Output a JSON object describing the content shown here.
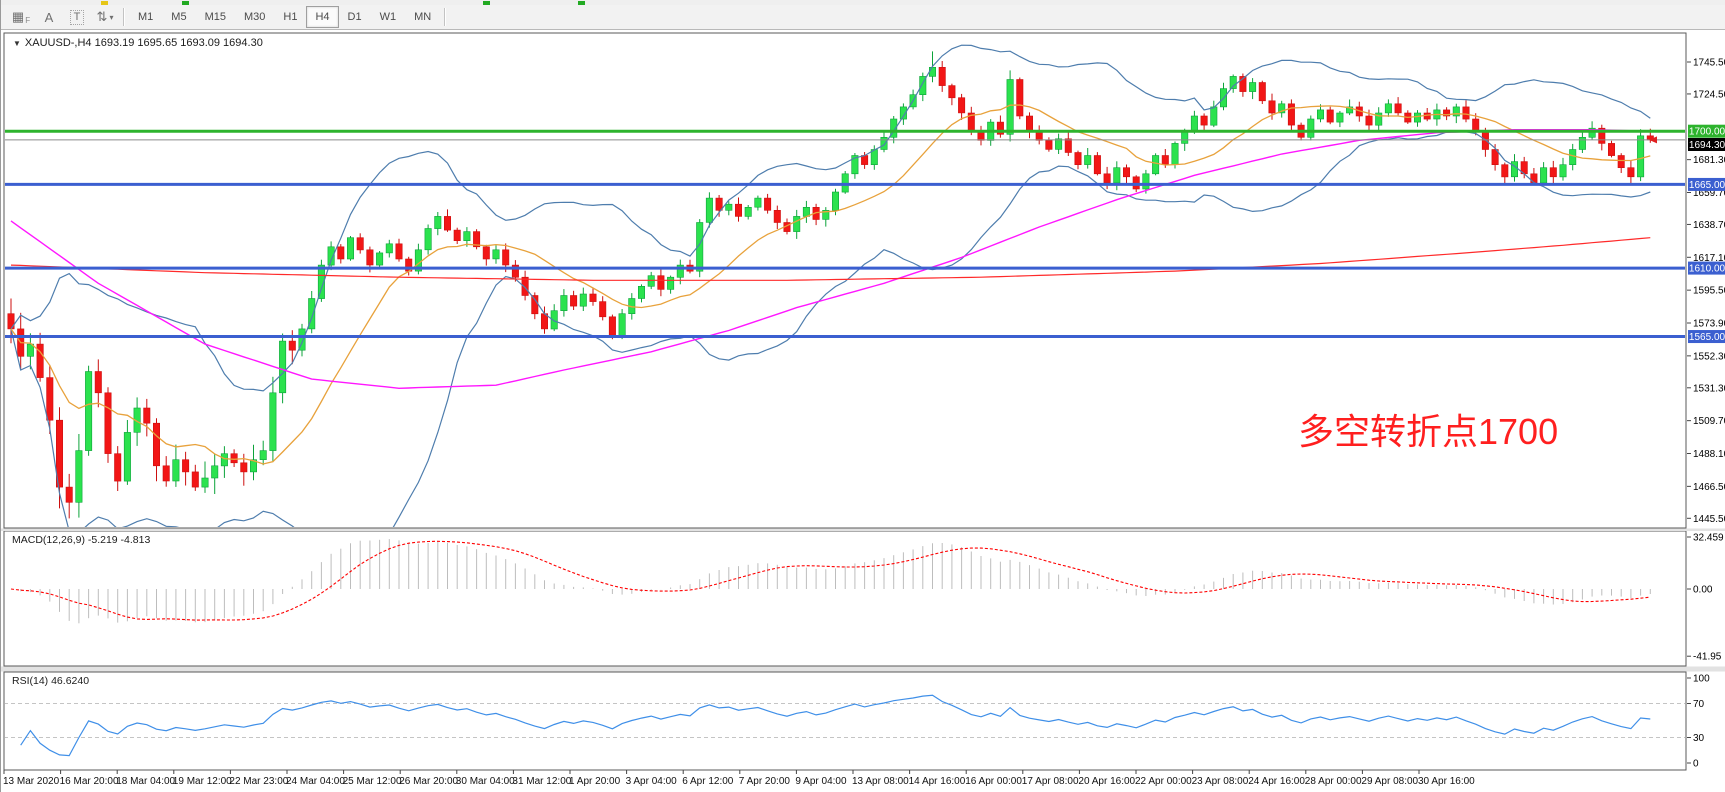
{
  "toolbar": {
    "tools": [
      {
        "name": "fibonacci-grid-tool",
        "glyph": "▦",
        "sub": "F"
      },
      {
        "name": "text-label-tool",
        "glyph": "A"
      },
      {
        "name": "text-tool",
        "glyph": "T"
      },
      {
        "name": "arrows-tool",
        "glyph": "⇅",
        "caret": "▾"
      }
    ],
    "timeframes": [
      "M1",
      "M5",
      "M15",
      "M30",
      "H1",
      "H4",
      "D1",
      "W1",
      "MN"
    ],
    "active_timeframe": "H4"
  },
  "chart": {
    "title": "XAUUSD-,H4  1693.19 1695.65 1693.09 1694.30",
    "dropdown_glyph": "▼",
    "annotation": "多空转折点1700"
  },
  "indicators": {
    "macd": {
      "label": "MACD(12,26,9) -5.219 -4.813"
    },
    "rsi": {
      "label": "RSI(14) 46.6240"
    }
  },
  "chart_data": {
    "type": "candlestick",
    "symbol": "XAUUSD",
    "timeframe": "H4",
    "last_bar": {
      "open": 1693.19,
      "high": 1695.65,
      "low": 1693.09,
      "close": 1694.3
    },
    "current_price": {
      "price": 1694.3,
      "label": "1694.30"
    },
    "closes": [
      1570,
      1552,
      1560,
      1538,
      1510,
      1466,
      1456,
      1490,
      1542,
      1528,
      1488,
      1470,
      1502,
      1518,
      1508,
      1480,
      1470,
      1484,
      1476,
      1466,
      1472,
      1480,
      1488,
      1482,
      1476,
      1484,
      1490,
      1528,
      1562,
      1556,
      1570,
      1590,
      1612,
      1624,
      1616,
      1630,
      1622,
      1612,
      1620,
      1626,
      1616,
      1608,
      1622,
      1636,
      1644,
      1635,
      1628,
      1634,
      1624,
      1616,
      1622,
      1612,
      1604,
      1592,
      1580,
      1570,
      1582,
      1592,
      1585,
      1593,
      1588,
      1578,
      1565,
      1580,
      1590,
      1598,
      1605,
      1596,
      1604,
      1612,
      1608,
      1640,
      1656,
      1648,
      1652,
      1644,
      1650,
      1656,
      1648,
      1640,
      1634,
      1644,
      1650,
      1642,
      1648,
      1660,
      1672,
      1684,
      1678,
      1688,
      1696,
      1708,
      1716,
      1724,
      1736,
      1742,
      1730,
      1722,
      1712,
      1700,
      1694,
      1706,
      1698,
      1734,
      1710,
      1700,
      1694,
      1688,
      1695,
      1686,
      1678,
      1684,
      1672,
      1666,
      1676,
      1670,
      1662,
      1672,
      1684,
      1678,
      1692,
      1700,
      1710,
      1704,
      1716,
      1728,
      1736,
      1726,
      1732,
      1720,
      1712,
      1718,
      1704,
      1696,
      1708,
      1714,
      1706,
      1712,
      1716,
      1710,
      1704,
      1712,
      1718,
      1712,
      1706,
      1712,
      1708,
      1714,
      1710,
      1716,
      1708,
      1700,
      1688,
      1678,
      1670,
      1680,
      1672,
      1666,
      1676,
      1670,
      1678,
      1688,
      1696,
      1702,
      1692,
      1684,
      1676,
      1670,
      1697,
      1694.3
    ],
    "price_axis": {
      "ticks": [
        "1745.50",
        "1724.50",
        "1681.30",
        "1659.70",
        "1638.70",
        "1617.10",
        "1595.50",
        "1573.90",
        "1552.30",
        "1531.30",
        "1509.70",
        "1488.10",
        "1466.50",
        "1445.50"
      ]
    },
    "levels": [
      {
        "price": 1700.0,
        "label": "1700.00",
        "color_key": "level_green"
      },
      {
        "price": 1665.0,
        "label": "1665.00",
        "color_key": "level_blue"
      },
      {
        "price": 1610.0,
        "label": "1610.00",
        "color_key": "level_blue"
      },
      {
        "price": 1565.0,
        "label": "1565.00",
        "color_key": "level_blue"
      }
    ],
    "x_labels": [
      "13 Mar 2020",
      "16 Mar 20:00",
      "18 Mar 04:00",
      "19 Mar 12:00",
      "22 Mar 23:00",
      "24 Mar 04:00",
      "25 Mar 12:00",
      "26 Mar 20:00",
      "30 Mar 04:00",
      "31 Mar 12:00",
      "1 Apr 20:00",
      "3 Apr 04:00",
      "6 Apr 12:00",
      "7 Apr 20:00",
      "9 Apr 04:00",
      "13 Apr 08:00",
      "14 Apr 16:00",
      "16 Apr 00:00",
      "17 Apr 08:00",
      "20 Apr 16:00",
      "22 Apr 00:00",
      "23 Apr 08:00",
      "24 Apr 16:00",
      "28 Apr 00:00",
      "29 Apr 08:00",
      "30 Apr 16:00"
    ],
    "macd": {
      "params": [
        12,
        26,
        9
      ],
      "current_main": -5.219,
      "current_signal": -4.813,
      "axis_ticks": [
        {
          "v": 32.459,
          "label": "32.459"
        },
        {
          "v": 0,
          "label": "0.00"
        },
        {
          "v": -41.95,
          "label": "-41.95"
        }
      ]
    },
    "rsi": {
      "period": 14,
      "current": 46.624,
      "axis_ticks": [
        {
          "v": 100,
          "label": "100"
        },
        {
          "v": 70,
          "label": "70"
        },
        {
          "v": 30,
          "label": "30"
        },
        {
          "v": 0,
          "label": "0"
        }
      ],
      "dashed_levels": [
        70,
        30
      ]
    },
    "overlays": {
      "ma_magenta_keyframes": [
        [
          0,
          1641
        ],
        [
          9,
          1600
        ],
        [
          20,
          1560
        ],
        [
          31,
          1537
        ],
        [
          40,
          1531
        ],
        [
          50,
          1533
        ],
        [
          57,
          1543
        ],
        [
          66,
          1555
        ],
        [
          74,
          1569
        ],
        [
          81,
          1584
        ],
        [
          90,
          1600
        ],
        [
          98,
          1617
        ],
        [
          106,
          1637
        ],
        [
          114,
          1655
        ],
        [
          122,
          1671
        ],
        [
          131,
          1685
        ],
        [
          139,
          1694
        ],
        [
          147,
          1699
        ],
        [
          155,
          1701
        ],
        [
          163,
          1701
        ],
        [
          169,
          1700
        ]
      ],
      "ma_red_keyframes": [
        [
          0,
          1612
        ],
        [
          20,
          1607
        ],
        [
          40,
          1604
        ],
        [
          60,
          1602
        ],
        [
          80,
          1602
        ],
        [
          100,
          1604
        ],
        [
          120,
          1608
        ],
        [
          135,
          1613
        ],
        [
          150,
          1620
        ],
        [
          160,
          1625
        ],
        [
          169,
          1630
        ]
      ],
      "bollinger_period": 20,
      "bollinger_dev": 2,
      "fast_ma_period": 13
    },
    "colors": {
      "up": "#2be24e",
      "up_stroke": "#0ca33a",
      "down": "#f21616",
      "down_stroke": "#cc0f0f",
      "bands": "#4e7dad",
      "ma_fast": "#e8a23c",
      "ma_mid": "#ff17ff",
      "ma_slow": "#ff2a2a",
      "level_green": "#2db32d",
      "level_blue": "#3b5fd0",
      "current_line": "#8a8a8a",
      "current_badge": "#000000",
      "macd_hist": "#bdbdbd",
      "macd_signal": "#ff0000",
      "rsi_line": "#3f8fe8",
      "annotation": "#ff1f1f"
    }
  }
}
